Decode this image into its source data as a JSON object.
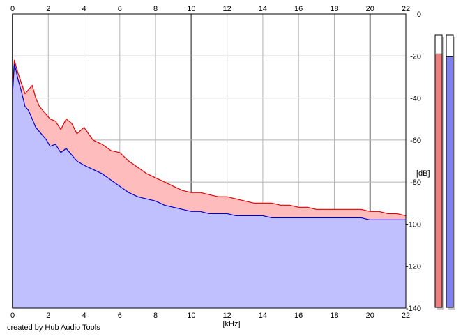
{
  "chart_data": {
    "type": "area",
    "title": "",
    "xlabel": "[kHz]",
    "ylabel": "[dB]",
    "xlim": [
      0,
      22
    ],
    "ylim": [
      -140,
      0
    ],
    "x_ticks": [
      0,
      2,
      4,
      6,
      8,
      10,
      12,
      14,
      16,
      18,
      20,
      22
    ],
    "y_ticks": [
      0,
      -20,
      -40,
      -60,
      -80,
      -100,
      -120,
      -140
    ],
    "grid": true,
    "legend": "none",
    "series": [
      {
        "color": "#e00000",
        "fill": "#ffbcbc",
        "x": [
          0,
          0.1,
          0.2,
          0.3,
          0.5,
          0.7,
          0.9,
          1.1,
          1.3,
          1.5,
          1.7,
          1.9,
          2.1,
          2.4,
          2.7,
          3.0,
          3.3,
          3.6,
          4.0,
          4.5,
          5.0,
          5.5,
          6.0,
          6.5,
          7.0,
          7.5,
          8.0,
          8.5,
          9.0,
          9.5,
          10.0,
          10.5,
          11.0,
          11.5,
          12.0,
          12.5,
          13.0,
          13.5,
          14.0,
          14.5,
          15.0,
          15.5,
          16.0,
          16.5,
          17.0,
          17.5,
          18.0,
          18.5,
          19.0,
          19.5,
          20.0,
          20.5,
          21.0,
          21.5,
          22.0
        ],
        "values": [
          -35,
          -22,
          -25,
          -28,
          -33,
          -38,
          -36,
          -34,
          -40,
          -44,
          -46,
          -48,
          -50,
          -51,
          -55,
          -50,
          -52,
          -57,
          -54,
          -60,
          -62,
          -65,
          -66,
          -70,
          -73,
          -76,
          -78,
          -80,
          -82,
          -84,
          -85,
          -85,
          -86,
          -87,
          -87,
          -88,
          -89,
          -90,
          -90,
          -90,
          -91,
          -91,
          -92,
          -92,
          -93,
          -93,
          -93,
          -93,
          -93,
          -93,
          -94,
          -94,
          -95,
          -95,
          -96
        ]
      },
      {
        "color": "#0000c8",
        "fill": "#c0c0ff",
        "x": [
          0,
          0.1,
          0.2,
          0.3,
          0.5,
          0.7,
          0.9,
          1.1,
          1.3,
          1.5,
          1.7,
          1.9,
          2.1,
          2.4,
          2.7,
          3.0,
          3.3,
          3.6,
          4.0,
          4.5,
          5.0,
          5.5,
          6.0,
          6.5,
          7.0,
          7.5,
          8.0,
          8.5,
          9.0,
          9.5,
          10.0,
          10.5,
          11.0,
          11.5,
          12.0,
          12.5,
          13.0,
          13.5,
          14.0,
          14.5,
          15.0,
          15.5,
          16.0,
          16.5,
          17.0,
          17.5,
          18.0,
          18.5,
          19.0,
          19.5,
          20.0,
          20.5,
          21.0,
          21.5,
          22.0
        ],
        "values": [
          -38,
          -24,
          -27,
          -31,
          -37,
          -44,
          -46,
          -50,
          -54,
          -56,
          -58,
          -60,
          -63,
          -62,
          -66,
          -64,
          -67,
          -70,
          -72,
          -74,
          -76,
          -79,
          -82,
          -85,
          -87,
          -88,
          -89,
          -91,
          -92,
          -93,
          -94,
          -94,
          -95,
          -95,
          -95,
          -96,
          -96,
          -96,
          -96,
          -97,
          -97,
          -97,
          -97,
          -97,
          -97,
          -97,
          -97,
          -97,
          -97,
          -97,
          -98,
          -98,
          -98,
          -98,
          -98
        ]
      }
    ]
  },
  "level_meters": [
    {
      "fill": "#f08080",
      "level": 0.93
    },
    {
      "fill": "#8080f0",
      "level": 0.92
    }
  ],
  "credit": "created by Hub Audio Tools"
}
